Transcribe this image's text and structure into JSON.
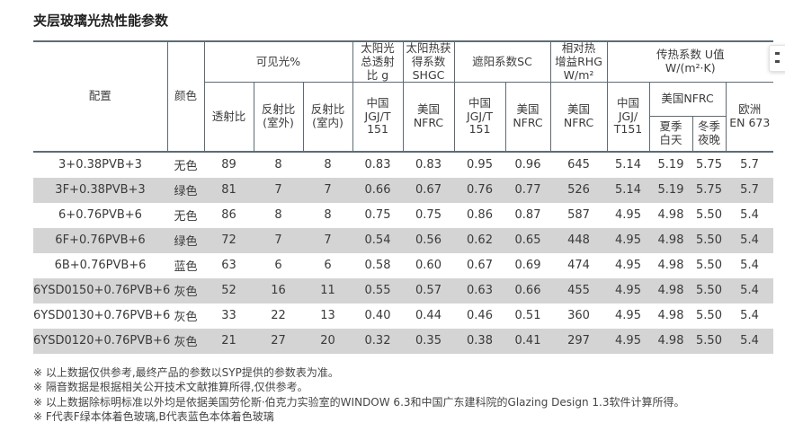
{
  "title": "夹层玻璃光热性能参数",
  "colors": {
    "border": "#5e6b74",
    "row_stripe": "#d4d4d4",
    "text": "#3b3b3b"
  },
  "table": {
    "header": {
      "config": "配置",
      "color": "颜色",
      "visible_light": "可见光%",
      "transmittance": "透射比",
      "reflectance_outdoor": "反射比\n(室外)",
      "reflectance_indoor": "反射比\n(室内)",
      "solar_g": "太阳光\n总透射\n比 g",
      "shgc": "太阳热获\n得系数\nSHGC",
      "sc": "遮阳系数SC",
      "rhg": "相对热\n增益RHG\nW/m²",
      "u_value": "传热系数 U值\nW/(m²·K)",
      "cn_jgjt151": "中国\nJGJ/T\n151",
      "us_nfrc": "美国\nNFRC",
      "cn_jgj_t151_u": "中国\nJGJ/\nT151",
      "us_nfrc_wide": "美国NFRC",
      "summer_day": "夏季\n白天",
      "winter_night": "冬季\n夜晚",
      "europe_en673": "欧洲\nEN 673"
    },
    "rows": [
      [
        "3+0.38PVB+3",
        "无色",
        "89",
        "8",
        "8",
        "0.83",
        "0.83",
        "0.95",
        "0.96",
        "645",
        "5.14",
        "5.19",
        "5.75",
        "5.7"
      ],
      [
        "3F+0.38PVB+3",
        "绿色",
        "81",
        "7",
        "7",
        "0.66",
        "0.67",
        "0.76",
        "0.77",
        "526",
        "5.14",
        "5.19",
        "5.75",
        "5.7"
      ],
      [
        "6+0.76PVB+6",
        "无色",
        "86",
        "8",
        "8",
        "0.75",
        "0.75",
        "0.86",
        "0.87",
        "587",
        "4.95",
        "4.98",
        "5.50",
        "5.4"
      ],
      [
        "6F+0.76PVB+6",
        "绿色",
        "72",
        "7",
        "7",
        "0.54",
        "0.56",
        "0.62",
        "0.65",
        "448",
        "4.95",
        "4.98",
        "5.50",
        "5.4"
      ],
      [
        "6B+0.76PVB+6",
        "蓝色",
        "63",
        "6",
        "6",
        "0.58",
        "0.60",
        "0.67",
        "0.69",
        "474",
        "4.95",
        "4.98",
        "5.50",
        "5.4"
      ],
      [
        "6YSD0150+0.76PVB+6",
        "灰色",
        "52",
        "16",
        "11",
        "0.55",
        "0.57",
        "0.63",
        "0.66",
        "455",
        "4.95",
        "4.98",
        "5.50",
        "5.4"
      ],
      [
        "6YSD0130+0.76PVB+6",
        "灰色",
        "33",
        "22",
        "13",
        "0.40",
        "0.44",
        "0.46",
        "0.51",
        "360",
        "4.95",
        "4.98",
        "5.50",
        "5.4"
      ],
      [
        "6YSD0120+0.76PVB+6",
        "灰色",
        "21",
        "27",
        "20",
        "0.32",
        "0.35",
        "0.38",
        "0.41",
        "297",
        "4.95",
        "4.98",
        "5.50",
        "5.4"
      ]
    ]
  },
  "footnotes": [
    "※ 以上数据仅供参考,最终产品的参数以SYP提供的参数表为准。",
    "※ 隔音数据是根据相关公开技术文献推算所得,仅供参考。",
    "※ 以上数据除标明标准以外均是依据美国劳伦斯·伯克力实验室的WINDOW 6.3和中国广东建科院的Glazing Design 1.3软件计算所得。",
    "※ F代表F绿本体着色玻璃,B代表蓝色本体着色玻璃"
  ]
}
